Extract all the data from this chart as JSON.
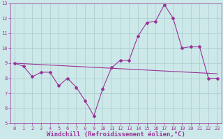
{
  "title": "",
  "xlabel": "Windchill (Refroidissement éolien,°C)",
  "ylabel": "",
  "xlim": [
    -0.5,
    23.5
  ],
  "ylim": [
    5,
    13
  ],
  "yticks": [
    5,
    6,
    7,
    8,
    9,
    10,
    11,
    12,
    13
  ],
  "xticks": [
    0,
    1,
    2,
    3,
    4,
    5,
    6,
    7,
    8,
    9,
    10,
    11,
    12,
    13,
    14,
    15,
    16,
    17,
    18,
    19,
    20,
    21,
    22,
    23
  ],
  "line1_x": [
    0,
    1,
    2,
    3,
    4,
    5,
    6,
    7,
    8,
    9,
    10,
    11,
    12,
    13,
    14,
    15,
    16,
    17,
    18,
    19,
    20,
    21,
    22,
    23
  ],
  "line1_y": [
    9.0,
    8.8,
    8.1,
    8.4,
    8.4,
    7.5,
    8.0,
    7.4,
    6.5,
    5.5,
    7.3,
    8.7,
    9.2,
    9.2,
    10.8,
    11.7,
    11.8,
    12.9,
    12.0,
    10.0,
    10.1,
    10.1,
    8.0,
    8.0
  ],
  "line2_x": [
    0,
    23
  ],
  "line2_y": [
    9.0,
    8.3
  ],
  "line_color": "#993399",
  "bg_color": "#cce8e8",
  "grid_color": "#aacccc",
  "tick_label_fontsize": 5.0,
  "xlabel_fontsize": 6.5,
  "title_fontsize": 6
}
